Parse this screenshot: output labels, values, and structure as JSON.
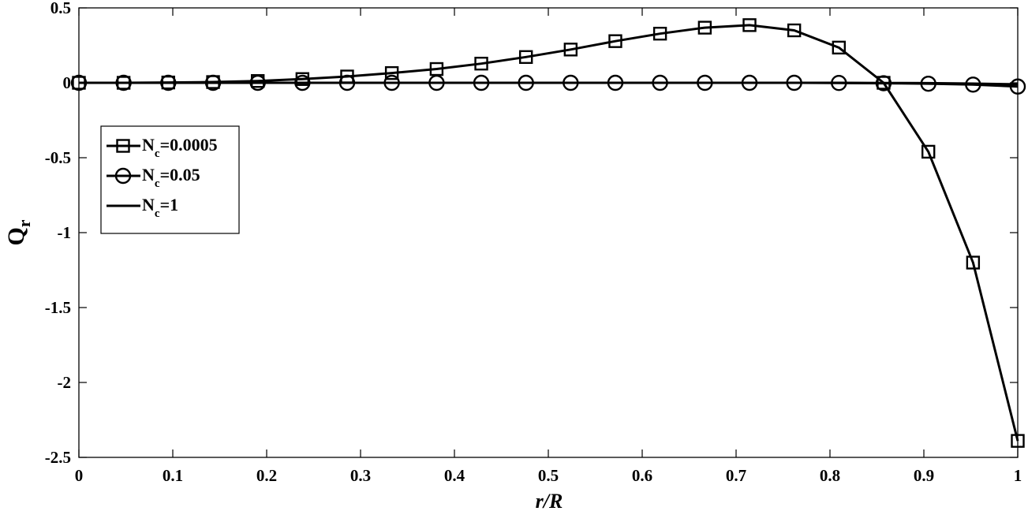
{
  "chart_data": {
    "type": "line",
    "xlabel": "r/R",
    "ylabel": "Q",
    "ylabel_sub": "r",
    "xlim": [
      0,
      1
    ],
    "ylim": [
      -2.5,
      0.5
    ],
    "xticks": [
      "0",
      "0.1",
      "0.2",
      "0.3",
      "0.4",
      "0.5",
      "0.6",
      "0.7",
      "0.8",
      "0.9",
      "1"
    ],
    "xtick_values": [
      0,
      0.1,
      0.2,
      0.3,
      0.4,
      0.5,
      0.6,
      0.7,
      0.8,
      0.9,
      1.0
    ],
    "yticks": [
      "0.5",
      "0",
      "-0.5",
      "-1",
      "-1.5",
      "-2",
      "-2.5"
    ],
    "ytick_values": [
      0.5,
      0,
      -0.5,
      -1,
      -1.5,
      -2,
      -2.5
    ],
    "grid": false,
    "legend_position": "left",
    "x": [
      0,
      0.0476,
      0.0952,
      0.1429,
      0.1905,
      0.2381,
      0.2857,
      0.3333,
      0.381,
      0.4286,
      0.4762,
      0.5238,
      0.5714,
      0.619,
      0.6667,
      0.7143,
      0.7619,
      0.8095,
      0.8571,
      0.9048,
      0.9524,
      1.0
    ],
    "series": [
      {
        "name": "N",
        "name_sub": "c",
        "name_suffix": "=0.0005",
        "marker": "square",
        "values": [
          0,
          0,
          0.002,
          0.005,
          0.012,
          0.025,
          0.042,
          0.065,
          0.092,
          0.128,
          0.172,
          0.222,
          0.278,
          0.328,
          0.368,
          0.385,
          0.35,
          0.235,
          0.0,
          -0.46,
          -1.2,
          -2.39
        ]
      },
      {
        "name": "N",
        "name_sub": "c",
        "name_suffix": "=0.05",
        "marker": "circle",
        "values": [
          0,
          0,
          0,
          0,
          0,
          0,
          0,
          0,
          0,
          0,
          0,
          0,
          0,
          0,
          0,
          0,
          0,
          -0.001,
          -0.003,
          -0.006,
          -0.012,
          -0.025
        ]
      },
      {
        "name": "N",
        "name_sub": "c",
        "name_suffix": "=1",
        "marker": "none",
        "values": [
          0,
          0,
          0,
          0,
          0,
          0,
          0,
          0,
          0,
          0,
          0,
          0,
          0,
          0,
          0,
          0,
          0,
          0,
          -0.001,
          -0.002,
          -0.005,
          -0.01
        ]
      }
    ]
  }
}
